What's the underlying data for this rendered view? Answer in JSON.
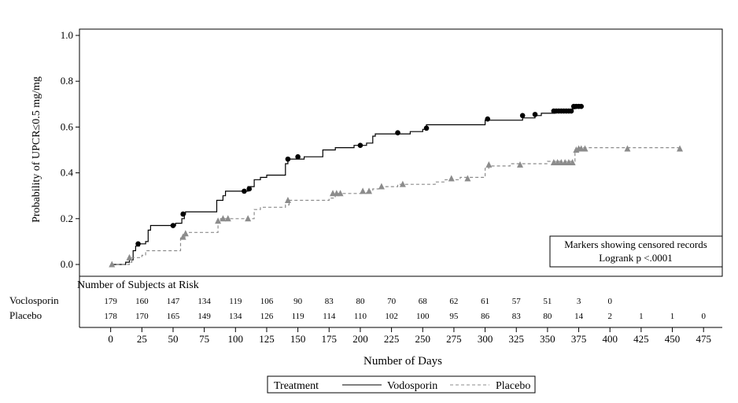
{
  "chart_data": {
    "type": "line",
    "subtype": "kaplan-meier",
    "ylabel": "Probability of UPCR≤0.5 mg/mg",
    "xlabel": "Number of Days",
    "ylim": [
      0,
      1.0
    ],
    "y_ticks": [
      "0.0",
      "0.2",
      "0.4",
      "0.6",
      "0.8",
      "1.0"
    ],
    "xlim": [
      -25,
      490
    ],
    "x_ticks": [
      "0",
      "25",
      "50",
      "75",
      "100",
      "125",
      "150",
      "175",
      "200",
      "225",
      "250",
      "275",
      "300",
      "325",
      "350",
      "375",
      "400",
      "425",
      "450",
      "475"
    ],
    "annotation": {
      "line1": "Markers showing censored records",
      "line2": "Logrank p <.0001"
    },
    "risk_table": {
      "title": "Number of Subjects at Risk",
      "rows": [
        {
          "label": "Voclosporin",
          "values": [
            "179",
            "160",
            "147",
            "134",
            "119",
            "106",
            "90",
            "83",
            "80",
            "70",
            "68",
            "62",
            "61",
            "57",
            "51",
            "3",
            "0"
          ]
        },
        {
          "label": "Placebo",
          "values": [
            "178",
            "170",
            "165",
            "149",
            "134",
            "126",
            "119",
            "114",
            "110",
            "102",
            "100",
            "95",
            "86",
            "83",
            "80",
            "14",
            "2",
            "1",
            "1",
            "0"
          ]
        }
      ]
    },
    "legend": {
      "title": "Treatment",
      "position": "bottom-center"
    },
    "series": [
      {
        "name": "Vodosporin",
        "color": "#000000",
        "line_style": "solid",
        "marker": "circle",
        "steps": [
          [
            0,
            0
          ],
          [
            12,
            0.01
          ],
          [
            15,
            0.02
          ],
          [
            18,
            0.06
          ],
          [
            20,
            0.08
          ],
          [
            23,
            0.09
          ],
          [
            28,
            0.1
          ],
          [
            30,
            0.15
          ],
          [
            32,
            0.17
          ],
          [
            52,
            0.18
          ],
          [
            57,
            0.2
          ],
          [
            59,
            0.22
          ],
          [
            60,
            0.23
          ],
          [
            80,
            0.23
          ],
          [
            85,
            0.28
          ],
          [
            90,
            0.3
          ],
          [
            92,
            0.32
          ],
          [
            105,
            0.32
          ],
          [
            110,
            0.34
          ],
          [
            115,
            0.37
          ],
          [
            120,
            0.38
          ],
          [
            125,
            0.39
          ],
          [
            135,
            0.39
          ],
          [
            140,
            0.44
          ],
          [
            142,
            0.46
          ],
          [
            146,
            0.46
          ],
          [
            150,
            0.46
          ],
          [
            155,
            0.47
          ],
          [
            170,
            0.5
          ],
          [
            180,
            0.51
          ],
          [
            195,
            0.52
          ],
          [
            205,
            0.53
          ],
          [
            210,
            0.56
          ],
          [
            212,
            0.57
          ],
          [
            225,
            0.57
          ],
          [
            240,
            0.58
          ],
          [
            250,
            0.59
          ],
          [
            253,
            0.61
          ],
          [
            295,
            0.61
          ],
          [
            300,
            0.63
          ],
          [
            330,
            0.64
          ],
          [
            340,
            0.65
          ],
          [
            345,
            0.66
          ],
          [
            350,
            0.66
          ],
          [
            356,
            0.67
          ],
          [
            370,
            0.68
          ],
          [
            372,
            0.69
          ],
          [
            378,
            0.69
          ]
        ],
        "censored": [
          [
            22,
            0.09
          ],
          [
            50,
            0.17
          ],
          [
            58,
            0.22
          ],
          [
            107,
            0.32
          ],
          [
            111,
            0.33
          ],
          [
            142,
            0.46
          ],
          [
            150,
            0.47
          ],
          [
            200,
            0.52
          ],
          [
            230,
            0.575
          ],
          [
            253,
            0.595
          ],
          [
            302,
            0.635
          ],
          [
            330,
            0.65
          ],
          [
            340,
            0.655
          ],
          [
            355,
            0.67
          ],
          [
            357,
            0.67
          ],
          [
            359,
            0.67
          ],
          [
            361,
            0.67
          ],
          [
            363,
            0.67
          ],
          [
            365,
            0.67
          ],
          [
            367,
            0.67
          ],
          [
            369,
            0.67
          ],
          [
            371,
            0.69
          ],
          [
            373,
            0.69
          ],
          [
            375,
            0.69
          ],
          [
            377,
            0.69
          ]
        ]
      },
      {
        "name": "Placebo",
        "color": "#8c8c8c",
        "line_style": "dashed",
        "marker": "triangle",
        "steps": [
          [
            0,
            0
          ],
          [
            15,
            0.01
          ],
          [
            17,
            0.03
          ],
          [
            25,
            0.04
          ],
          [
            28,
            0.06
          ],
          [
            55,
            0.06
          ],
          [
            56,
            0.12
          ],
          [
            60,
            0.14
          ],
          [
            85,
            0.14
          ],
          [
            86,
            0.19
          ],
          [
            88,
            0.2
          ],
          [
            110,
            0.2
          ],
          [
            115,
            0.24
          ],
          [
            120,
            0.25
          ],
          [
            140,
            0.26
          ],
          [
            143,
            0.28
          ],
          [
            175,
            0.29
          ],
          [
            180,
            0.31
          ],
          [
            195,
            0.31
          ],
          [
            205,
            0.32
          ],
          [
            210,
            0.33
          ],
          [
            215,
            0.34
          ],
          [
            225,
            0.34
          ],
          [
            230,
            0.35
          ],
          [
            250,
            0.35
          ],
          [
            260,
            0.36
          ],
          [
            268,
            0.37
          ],
          [
            280,
            0.38
          ],
          [
            295,
            0.38
          ],
          [
            300,
            0.42
          ],
          [
            303,
            0.43
          ],
          [
            320,
            0.44
          ],
          [
            345,
            0.44
          ],
          [
            350,
            0.45
          ],
          [
            370,
            0.45
          ],
          [
            372,
            0.5
          ],
          [
            373,
            0.51
          ],
          [
            455,
            0.51
          ]
        ],
        "censored": [
          [
            1,
            0
          ],
          [
            15,
            0.03
          ],
          [
            58,
            0.12
          ],
          [
            60,
            0.135
          ],
          [
            86,
            0.19
          ],
          [
            90,
            0.2
          ],
          [
            94,
            0.2
          ],
          [
            110,
            0.2
          ],
          [
            142,
            0.28
          ],
          [
            178,
            0.31
          ],
          [
            181,
            0.31
          ],
          [
            184,
            0.31
          ],
          [
            202,
            0.32
          ],
          [
            207,
            0.32
          ],
          [
            217,
            0.34
          ],
          [
            234,
            0.35
          ],
          [
            273,
            0.375
          ],
          [
            286,
            0.375
          ],
          [
            303,
            0.435
          ],
          [
            328,
            0.435
          ],
          [
            355,
            0.445
          ],
          [
            358,
            0.445
          ],
          [
            361,
            0.445
          ],
          [
            364,
            0.445
          ],
          [
            367,
            0.445
          ],
          [
            370,
            0.445
          ],
          [
            373,
            0.5
          ],
          [
            375,
            0.505
          ],
          [
            377,
            0.505
          ],
          [
            380,
            0.505
          ],
          [
            414,
            0.505
          ],
          [
            456,
            0.505
          ]
        ]
      }
    ]
  }
}
